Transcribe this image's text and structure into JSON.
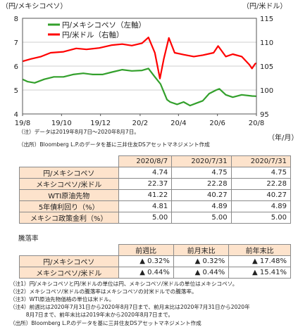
{
  "chart_data": {
    "type": "line",
    "left_axis_label": "（円/メキシコペソ）",
    "right_axis_label": "（円/米ドル）",
    "x_unit": "（年/月）",
    "x_ticks": [
      "19/8",
      "19/10",
      "19/12",
      "20/2",
      "20/4",
      "20/6",
      "20/8"
    ],
    "left_ylim": [
      4,
      8
    ],
    "left_yticks": [
      "4",
      "5",
      "6",
      "7",
      "8"
    ],
    "right_ylim": [
      95,
      115
    ],
    "right_yticks": [
      "95",
      "100",
      "105",
      "110",
      "115"
    ],
    "grid": true,
    "legend_position": "top-left",
    "series": [
      {
        "name": "円/メキシコペソ（左軸）",
        "axis": "left",
        "color": "#33a02c",
        "points": [
          [
            "2019-08-07",
            5.45
          ],
          [
            "2019-08-15",
            5.35
          ],
          [
            "2019-08-26",
            5.3
          ],
          [
            "2019-09-10",
            5.45
          ],
          [
            "2019-09-25",
            5.55
          ],
          [
            "2019-10-10",
            5.55
          ],
          [
            "2019-10-25",
            5.65
          ],
          [
            "2019-11-10",
            5.7
          ],
          [
            "2019-11-25",
            5.65
          ],
          [
            "2019-12-10",
            5.65
          ],
          [
            "2019-12-25",
            5.75
          ],
          [
            "2020-01-10",
            5.85
          ],
          [
            "2020-01-25",
            5.8
          ],
          [
            "2020-02-10",
            5.82
          ],
          [
            "2020-02-20",
            5.9
          ],
          [
            "2020-03-01",
            5.55
          ],
          [
            "2020-03-10",
            5.25
          ],
          [
            "2020-03-20",
            4.6
          ],
          [
            "2020-03-25",
            4.5
          ],
          [
            "2020-04-05",
            4.4
          ],
          [
            "2020-04-15",
            4.5
          ],
          [
            "2020-04-25",
            4.35
          ],
          [
            "2020-05-05",
            4.45
          ],
          [
            "2020-05-15",
            4.55
          ],
          [
            "2020-05-25",
            4.85
          ],
          [
            "2020-06-05",
            5.0
          ],
          [
            "2020-06-10",
            5.05
          ],
          [
            "2020-06-20",
            4.8
          ],
          [
            "2020-07-01",
            4.7
          ],
          [
            "2020-07-15",
            4.8
          ],
          [
            "2020-07-31",
            4.75
          ],
          [
            "2020-08-07",
            4.74
          ]
        ]
      },
      {
        "name": "円/米ドル（右軸）",
        "axis": "right",
        "color": "#ff0000",
        "points": [
          [
            "2019-08-07",
            106.0
          ],
          [
            "2019-08-20",
            106.5
          ],
          [
            "2019-09-05",
            107.0
          ],
          [
            "2019-09-20",
            107.8
          ],
          [
            "2019-10-10",
            108.0
          ],
          [
            "2019-10-30",
            108.7
          ],
          [
            "2019-11-15",
            108.5
          ],
          [
            "2019-12-05",
            108.8
          ],
          [
            "2019-12-25",
            109.4
          ],
          [
            "2020-01-10",
            109.6
          ],
          [
            "2020-01-25",
            109.3
          ],
          [
            "2020-02-10",
            109.8
          ],
          [
            "2020-02-20",
            111.0
          ],
          [
            "2020-03-01",
            107.8
          ],
          [
            "2020-03-09",
            102.4
          ],
          [
            "2020-03-15",
            106.5
          ],
          [
            "2020-03-23",
            110.9
          ],
          [
            "2020-04-01",
            107.8
          ],
          [
            "2020-04-15",
            107.4
          ],
          [
            "2020-05-01",
            107.0
          ],
          [
            "2020-05-15",
            107.3
          ],
          [
            "2020-06-01",
            107.8
          ],
          [
            "2020-06-08",
            109.2
          ],
          [
            "2020-06-20",
            107.0
          ],
          [
            "2020-07-01",
            107.5
          ],
          [
            "2020-07-15",
            107.0
          ],
          [
            "2020-07-27",
            105.3
          ],
          [
            "2020-07-31",
            104.5
          ],
          [
            "2020-08-05",
            105.5
          ],
          [
            "2020-08-07",
            105.6
          ]
        ]
      }
    ]
  },
  "chart_notes": {
    "note1": "（注）データは2019年8月7日～2020年8月7日。",
    "note2": "（出所）Bloomberg L.P.のデータを基に三井住友DSアセットマネジメント作成"
  },
  "main_table": {
    "headers": [
      "2020/8/7",
      "2020/7/31",
      "2020/7/31"
    ],
    "rows": [
      {
        "label": "円/メキシコペソ",
        "values": [
          "4.74",
          "4.75",
          "4.75"
        ]
      },
      {
        "label": "メキシコペソ/米ドル",
        "values": [
          "22.37",
          "22.28",
          "22.28"
        ]
      },
      {
        "label": "WTI原油先物",
        "values": [
          "41.22",
          "40.27",
          "40.27"
        ]
      },
      {
        "label": "5年債利回り（%）",
        "values": [
          "4.81",
          "4.89",
          "4.89"
        ]
      },
      {
        "label": "メキシコ政策金利（%）",
        "values": [
          "5.00",
          "5.00",
          "5.00"
        ]
      }
    ]
  },
  "drop_table": {
    "title": "騰落率",
    "headers": [
      "前週比",
      "前月末比",
      "前年末比"
    ],
    "rows": [
      {
        "label": "円/メキシコペソ",
        "values": [
          "▲ 0.32%",
          "▲ 0.32%",
          "▲ 17.48%"
        ]
      },
      {
        "label": "メキシコペソ/米ドル",
        "values": [
          "▲ 0.44%",
          "▲ 0.44%",
          "▲ 15.41%"
        ]
      }
    ]
  },
  "footnotes": [
    "（注1）円/メキシコペソと円/米ドルの単位は円、メキシコペソ/米ドルの単位はメキシコペソ。",
    "（注2）メキシコペソ/米ドルの騰落率はメキシコペソの対米ドルでの騰落率。",
    "（注3）WTI原油先物価格の単位は米ドル。",
    "（注4）前週比は2020年7月31日から2020年8月7日まで、前月末比は2020年7月31日から2020年",
    "　　　8月7日まで、前年末比は2019年末から2020年8月7日まで。",
    "（出所）Bloomberg L.P.のデータを基に三井住友DSアセットマネジメント作成"
  ]
}
